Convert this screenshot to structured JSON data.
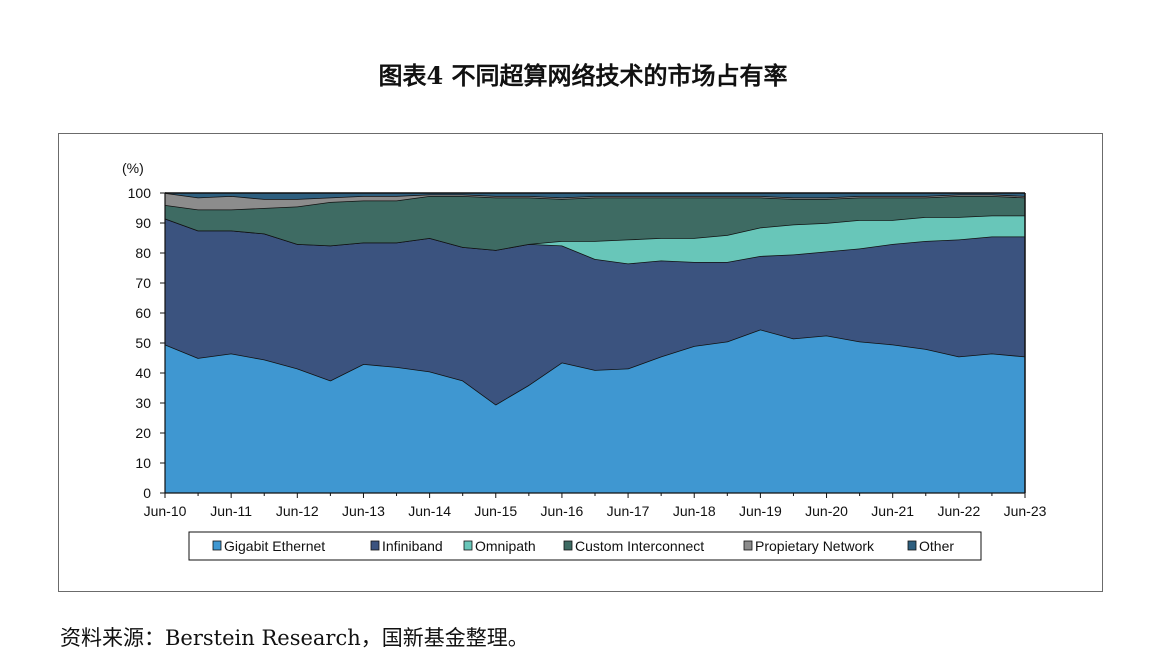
{
  "title": "图表4  不同超算网络技术的市场占有率",
  "source": "资料来源：Berstein Research，国新基金整理。",
  "chart_data": {
    "type": "area",
    "stacked": true,
    "ylabel": "(%)",
    "ylim": [
      0,
      100
    ],
    "yticks": [
      0,
      10,
      20,
      30,
      40,
      50,
      60,
      70,
      80,
      90,
      100
    ],
    "xtick_labels": [
      "Jun-10",
      "Jun-11",
      "Jun-12",
      "Jun-13",
      "Jun-14",
      "Jun-15",
      "Jun-16",
      "Jun-17",
      "Jun-18",
      "Jun-19",
      "Jun-20",
      "Jun-21",
      "Jun-22",
      "Jun-23"
    ],
    "x": [
      "Jun-10",
      "Nov-10",
      "Jun-11",
      "Nov-11",
      "Jun-12",
      "Nov-12",
      "Jun-13",
      "Nov-13",
      "Jun-14",
      "Nov-14",
      "Jun-15",
      "Nov-15",
      "Jun-16",
      "Nov-16",
      "Jun-17",
      "Nov-17",
      "Jun-18",
      "Nov-18",
      "Jun-19",
      "Nov-19",
      "Jun-20",
      "Nov-20",
      "Jun-21",
      "Nov-21",
      "Jun-22",
      "Nov-22",
      "Jun-23"
    ],
    "legend_position": "bottom",
    "series": [
      {
        "name": "Gigabit Ethernet",
        "color": "#3f97d1",
        "values": [
          49.5,
          45,
          46.5,
          44.5,
          41.5,
          37.5,
          43,
          42,
          40.5,
          37.5,
          29.5,
          36,
          43.5,
          41,
          41.5,
          45.5,
          49,
          50.5,
          54.5,
          51.5,
          52.5,
          50.5,
          49.5,
          48,
          45.5,
          46.5,
          45.5
        ]
      },
      {
        "name": "Infiniband",
        "color": "#3b537f",
        "values": [
          42,
          42.5,
          41,
          42,
          41.5,
          45,
          40.5,
          41.5,
          44.5,
          44.5,
          51.5,
          47,
          39,
          37,
          35,
          32,
          28,
          26.5,
          24.5,
          28,
          28,
          31,
          33.5,
          36,
          39,
          39,
          40
        ]
      },
      {
        "name": "Omnipath",
        "color": "#68c6b9",
        "values": [
          0,
          0,
          0,
          0,
          0,
          0,
          0,
          0,
          0,
          0,
          0,
          0,
          1.5,
          6,
          8,
          7.5,
          8,
          9,
          9.5,
          10,
          9.5,
          9.5,
          8,
          8,
          7.5,
          7,
          7
        ]
      },
      {
        "name": "Custom Interconnect",
        "color": "#3e6b63",
        "values": [
          4.5,
          7,
          7,
          8.5,
          12.5,
          14.5,
          14,
          14,
          14,
          17,
          17.5,
          15.5,
          14,
          14.5,
          14,
          13.5,
          13.5,
          12.5,
          10,
          8.5,
          8,
          7.5,
          7.5,
          6.5,
          7,
          6.5,
          6
        ]
      },
      {
        "name": "Propietary Network",
        "color": "#8c8c8c",
        "values": [
          4,
          4,
          4.5,
          3,
          2.5,
          1.5,
          1.5,
          1.5,
          0.5,
          0.5,
          0.5,
          0.5,
          0.5,
          0.5,
          0.5,
          0.5,
          0.5,
          0.5,
          0.5,
          0.5,
          0.5,
          0.5,
          0.5,
          0.5,
          0.5,
          0.5,
          0.5
        ]
      },
      {
        "name": "Other",
        "color": "#2e5f7f",
        "values": [
          0,
          1.5,
          1,
          2,
          2,
          1.5,
          1,
          1,
          0.5,
          0.5,
          1,
          1,
          1.5,
          1,
          1,
          1,
          1,
          1,
          1,
          1.5,
          1.5,
          1,
          1,
          1,
          0.5,
          0.5,
          1
        ]
      }
    ]
  }
}
